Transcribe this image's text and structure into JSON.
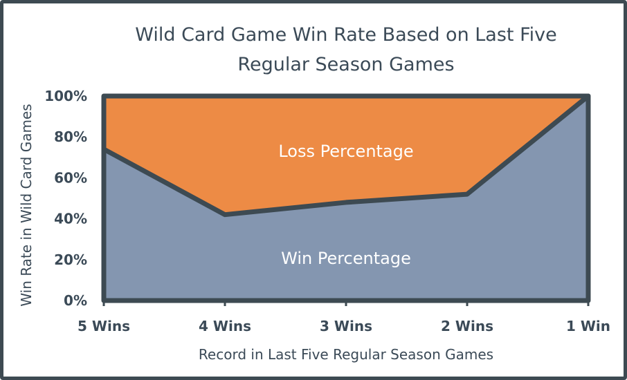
{
  "chart_data": {
    "type": "area",
    "title_lines": [
      "Wild Card Game Win Rate Based on Last Five",
      "Regular Season Games"
    ],
    "xlabel": "Record in Last Five Regular Season Games",
    "ylabel": "Win Rate in Wild Card Games",
    "categories": [
      "5 Wins",
      "4 Wins",
      "3 Wins",
      "2 Wins",
      "1 Win"
    ],
    "series": [
      {
        "name": "Win Percentage",
        "values": [
          74,
          42,
          48,
          52,
          100
        ],
        "color": "#8496b0"
      },
      {
        "name": "Loss Percentage",
        "values": [
          26,
          58,
          52,
          48,
          0
        ],
        "color": "#ed8b45"
      }
    ],
    "ylim": [
      0,
      100
    ],
    "yticks": [
      "0%",
      "20%",
      "40%",
      "60%",
      "80%",
      "100%"
    ],
    "grid": false,
    "legend": "none",
    "outline_color": "#3d4a52"
  }
}
